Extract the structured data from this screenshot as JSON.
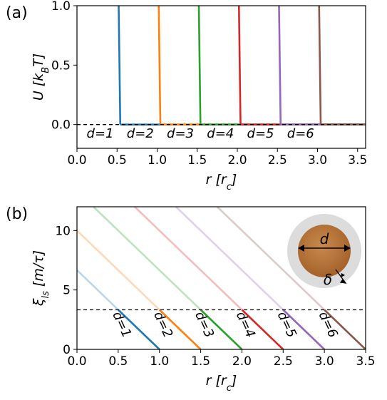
{
  "chart_data": [
    {
      "type": "line",
      "panel_label": "(a)",
      "xlabel": [
        "r [r",
        "c",
        "]"
      ],
      "ylabel": [
        "U [k",
        "B",
        "T]"
      ],
      "xlim": [
        0,
        3.6
      ],
      "ylim": [
        -0.2,
        1.0
      ],
      "xticks": [
        {
          "value": 0,
          "label": "0.0"
        },
        {
          "value": 0.5,
          "label": "0.5"
        },
        {
          "value": 1,
          "label": "1.0"
        },
        {
          "value": 1.5,
          "label": "1.5"
        },
        {
          "value": 2,
          "label": "2.0"
        },
        {
          "value": 2.5,
          "label": "2.5"
        },
        {
          "value": 3,
          "label": "3.0"
        },
        {
          "value": 3.5,
          "label": "3.5"
        }
      ],
      "yticks": [
        {
          "value": 0,
          "label": "0.0"
        },
        {
          "value": 0.5,
          "label": "0.5"
        },
        {
          "value": 1,
          "label": "1.0"
        }
      ],
      "hline": 0,
      "series": [
        {
          "name": "d=1",
          "color": "#1f77b4",
          "x": [
            0.52,
            0.54,
            3.6
          ],
          "values": [
            1.0,
            0,
            0
          ]
        },
        {
          "name": "d=2",
          "color": "#ff7f0e",
          "x": [
            1.02,
            1.04,
            3.6
          ],
          "values": [
            1.0,
            0,
            0
          ]
        },
        {
          "name": "d=3",
          "color": "#2ca02c",
          "x": [
            1.52,
            1.54,
            3.6
          ],
          "values": [
            1.0,
            0,
            0
          ]
        },
        {
          "name": "d=4",
          "color": "#d62728",
          "x": [
            2.02,
            2.04,
            3.6
          ],
          "values": [
            1.0,
            0,
            0
          ]
        },
        {
          "name": "d=5",
          "color": "#9467bd",
          "x": [
            2.52,
            2.54,
            3.6
          ],
          "values": [
            1.0,
            0,
            0
          ]
        },
        {
          "name": "d=6",
          "color": "#8c564b",
          "x": [
            3.02,
            3.04,
            3.6
          ],
          "values": [
            1.0,
            0,
            0
          ]
        }
      ]
    },
    {
      "type": "line",
      "panel_label": "(b)",
      "xlabel": [
        "r [r",
        "c",
        "]"
      ],
      "ylabel": [
        "ξ",
        "ls",
        " [m/τ]"
      ],
      "xlim": [
        0,
        3.5
      ],
      "ylim": [
        0,
        12
      ],
      "xticks": [
        {
          "value": 0,
          "label": "0.0"
        },
        {
          "value": 0.5,
          "label": "0.5"
        },
        {
          "value": 1,
          "label": "1.0"
        },
        {
          "value": 1.5,
          "label": "1.5"
        },
        {
          "value": 2,
          "label": "2.0"
        },
        {
          "value": 2.5,
          "label": "2.5"
        },
        {
          "value": 3,
          "label": "3.0"
        },
        {
          "value": 3.5,
          "label": "3.5"
        }
      ],
      "yticks": [
        0,
        5,
        10
      ],
      "hline": 3.33,
      "inset_labels": [
        "d",
        "δ"
      ],
      "series": [
        {
          "name": "d=1",
          "color": "#1f77b4",
          "x": [
            0,
            0.5,
            1.0
          ],
          "values": [
            6.67,
            3.33,
            0
          ]
        },
        {
          "name": "d=2",
          "color": "#ff7f0e",
          "x": [
            0,
            1.0,
            1.5
          ],
          "values": [
            10.0,
            3.33,
            0
          ]
        },
        {
          "name": "d=3",
          "color": "#2ca02c",
          "x": [
            0.2,
            1.5,
            2.0
          ],
          "values": [
            12,
            3.33,
            0
          ]
        },
        {
          "name": "d=4",
          "color": "#d62728",
          "x": [
            0.7,
            2.0,
            2.5
          ],
          "values": [
            12,
            3.33,
            0
          ]
        },
        {
          "name": "d=5",
          "color": "#9467bd",
          "x": [
            1.2,
            2.5,
            3.0
          ],
          "values": [
            12,
            3.33,
            0
          ]
        },
        {
          "name": "d=6",
          "color": "#8c564b",
          "x": [
            1.7,
            3.0,
            3.5
          ],
          "values": [
            12,
            3.33,
            0
          ]
        }
      ]
    }
  ]
}
